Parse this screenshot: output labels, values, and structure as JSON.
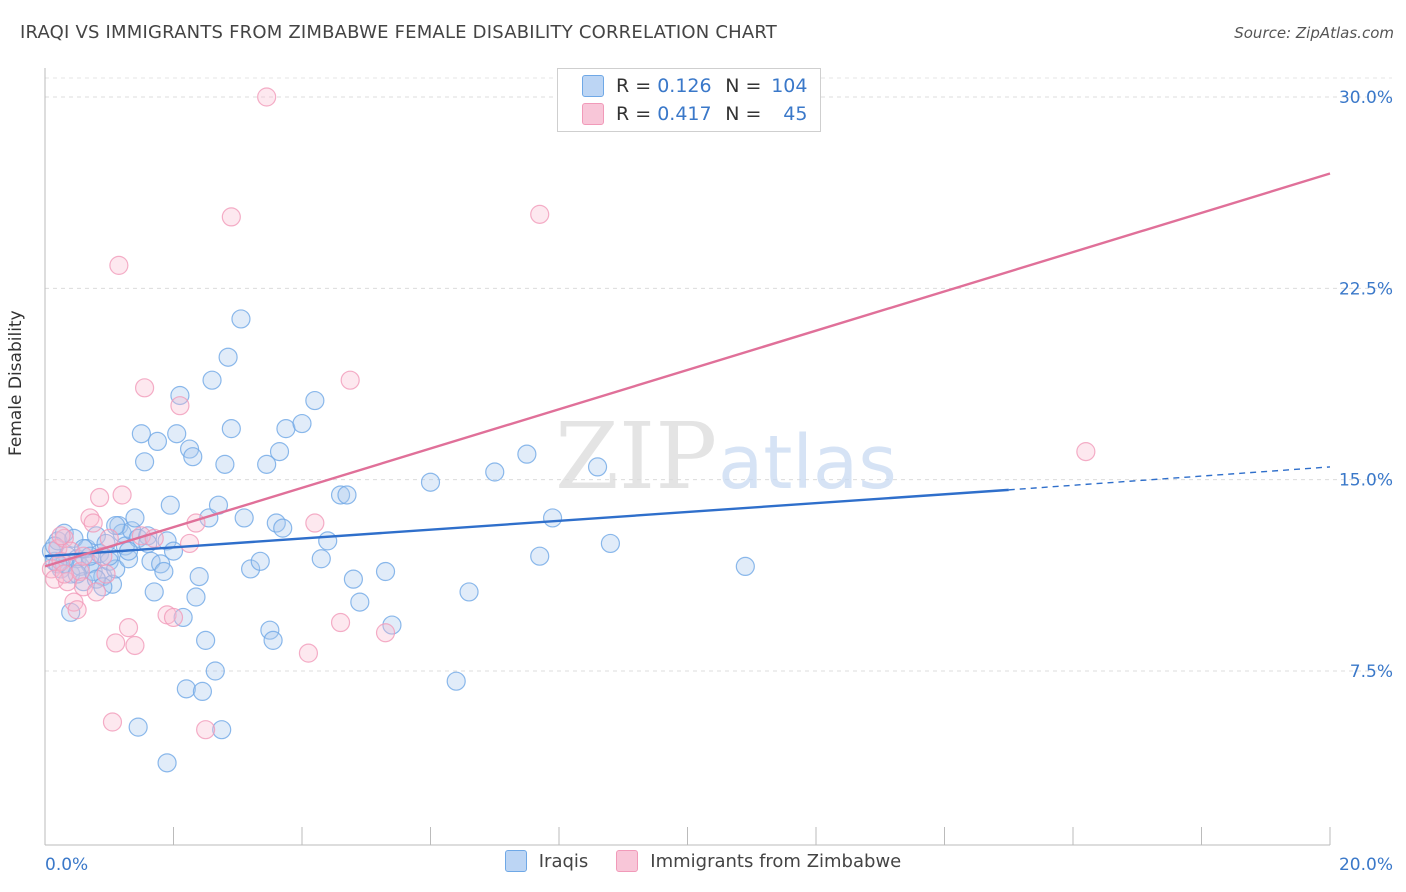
{
  "chart_data": {
    "type": "scatter",
    "title": "IRAQI VS IMMIGRANTS FROM ZIMBABWE FEMALE DISABILITY CORRELATION CHART",
    "source": "Source: ZipAtlas.com",
    "ylabel": "Female Disability",
    "xlim": [
      0,
      20
    ],
    "ylim": [
      0,
      31
    ],
    "x_tick_labels": [
      "0.0%",
      "20.0%"
    ],
    "y_ticks": [
      7.5,
      15.0,
      22.5,
      30.0
    ],
    "y_tick_labels": [
      "7.5%",
      "15.0%",
      "22.5%",
      "30.0%"
    ],
    "watermark": {
      "zip": "ZIP",
      "atlas": "atlas"
    },
    "legend": {
      "iraqis": {
        "r_label": "R =",
        "r_value": "0.126",
        "n_label": "N =",
        "n_value": "104"
      },
      "zimbabwe": {
        "r_label": "R =",
        "r_value": "0.417",
        "n_label": "N =",
        "n_value": "45"
      }
    },
    "series": [
      {
        "name": "Iraqis",
        "color": "#6fa8e6",
        "line_color": "#2f6fcb",
        "trend": {
          "x0": 0,
          "y0": 12.0,
          "x1": 15.0,
          "y1": 14.6,
          "dash_to_x": 20.0,
          "dash_to_y": 15.5
        },
        "points": [
          [
            0.1,
            12.2
          ],
          [
            0.15,
            11.8
          ],
          [
            0.2,
            12.6
          ],
          [
            0.25,
            11.5
          ],
          [
            0.3,
            12.9
          ],
          [
            0.35,
            12.0
          ],
          [
            0.4,
            11.3
          ],
          [
            0.45,
            12.7
          ],
          [
            0.5,
            11.9
          ],
          [
            0.55,
            11.6
          ],
          [
            0.6,
            11.0
          ],
          [
            0.65,
            12.3
          ],
          [
            0.7,
            11.7
          ],
          [
            0.75,
            11.4
          ],
          [
            0.8,
            12.8
          ],
          [
            0.85,
            12.1
          ],
          [
            0.9,
            11.2
          ],
          [
            0.95,
            12.5
          ],
          [
            1.0,
            11.8
          ],
          [
            1.05,
            10.9
          ],
          [
            1.1,
            11.5
          ],
          [
            1.15,
            13.2
          ],
          [
            1.2,
            12.9
          ],
          [
            1.25,
            12.4
          ],
          [
            1.3,
            11.9
          ],
          [
            1.35,
            13.0
          ],
          [
            1.4,
            13.5
          ],
          [
            1.45,
            12.7
          ],
          [
            1.5,
            16.8
          ],
          [
            1.55,
            15.7
          ],
          [
            1.6,
            12.8
          ],
          [
            1.65,
            11.8
          ],
          [
            1.7,
            10.6
          ],
          [
            1.75,
            16.5
          ],
          [
            1.8,
            11.7
          ],
          [
            1.85,
            11.4
          ],
          [
            1.9,
            12.6
          ],
          [
            1.95,
            14.0
          ],
          [
            2.0,
            12.2
          ],
          [
            2.05,
            16.8
          ],
          [
            2.1,
            18.3
          ],
          [
            2.15,
            9.6
          ],
          [
            2.2,
            6.8
          ],
          [
            2.25,
            16.2
          ],
          [
            2.3,
            15.9
          ],
          [
            2.35,
            10.4
          ],
          [
            2.4,
            11.2
          ],
          [
            2.45,
            6.7
          ],
          [
            2.5,
            8.7
          ],
          [
            2.55,
            13.5
          ],
          [
            2.6,
            18.9
          ],
          [
            2.65,
            7.5
          ],
          [
            2.7,
            14.0
          ],
          [
            2.75,
            5.2
          ],
          [
            2.8,
            15.6
          ],
          [
            2.85,
            19.8
          ],
          [
            2.9,
            17.0
          ],
          [
            3.05,
            21.3
          ],
          [
            3.1,
            13.5
          ],
          [
            3.2,
            11.5
          ],
          [
            3.35,
            11.8
          ],
          [
            3.45,
            15.6
          ],
          [
            3.5,
            9.1
          ],
          [
            3.55,
            8.7
          ],
          [
            3.6,
            13.3
          ],
          [
            3.65,
            16.1
          ],
          [
            3.7,
            13.1
          ],
          [
            3.75,
            17.0
          ],
          [
            4.0,
            17.2
          ],
          [
            4.2,
            18.1
          ],
          [
            4.3,
            11.9
          ],
          [
            4.4,
            12.6
          ],
          [
            4.6,
            14.4
          ],
          [
            4.7,
            14.4
          ],
          [
            4.8,
            11.1
          ],
          [
            4.9,
            10.2
          ],
          [
            5.3,
            11.4
          ],
          [
            5.4,
            9.3
          ],
          [
            6.0,
            14.9
          ],
          [
            6.4,
            7.1
          ],
          [
            6.6,
            10.6
          ],
          [
            7.0,
            15.3
          ],
          [
            7.5,
            16.0
          ],
          [
            7.7,
            12.0
          ],
          [
            7.9,
            13.5
          ],
          [
            8.6,
            15.5
          ],
          [
            8.8,
            12.5
          ],
          [
            10.9,
            11.6
          ],
          [
            1.45,
            5.3
          ],
          [
            1.9,
            3.9
          ],
          [
            0.4,
            9.8
          ],
          [
            1.0,
            12.0
          ],
          [
            0.3,
            11.7
          ],
          [
            0.6,
            12.3
          ],
          [
            1.1,
            13.2
          ],
          [
            0.8,
            11.1
          ],
          [
            0.5,
            11.3
          ],
          [
            0.2,
            11.7
          ],
          [
            0.9,
            10.8
          ],
          [
            1.6,
            12.5
          ],
          [
            0.7,
            12.0
          ],
          [
            1.3,
            12.2
          ],
          [
            0.15,
            12.4
          ]
        ]
      },
      {
        "name": "Immigrants from Zimbabwe",
        "color": "#f19ab9",
        "line_color": "#e07099",
        "trend": {
          "x0": 0,
          "y0": 11.6,
          "x1": 20.0,
          "y1": 27.0
        },
        "points": [
          [
            0.1,
            11.5
          ],
          [
            0.15,
            11.1
          ],
          [
            0.2,
            12.3
          ],
          [
            0.25,
            11.8
          ],
          [
            0.3,
            12.7
          ],
          [
            0.35,
            11.0
          ],
          [
            0.4,
            12.2
          ],
          [
            0.45,
            10.2
          ],
          [
            0.5,
            9.9
          ],
          [
            0.55,
            11.4
          ],
          [
            0.6,
            10.8
          ],
          [
            0.7,
            13.5
          ],
          [
            0.75,
            13.3
          ],
          [
            0.8,
            10.6
          ],
          [
            0.85,
            14.3
          ],
          [
            0.9,
            12.0
          ],
          [
            0.95,
            11.3
          ],
          [
            1.0,
            12.7
          ],
          [
            1.05,
            5.5
          ],
          [
            1.1,
            8.6
          ],
          [
            1.15,
            23.4
          ],
          [
            1.2,
            14.4
          ],
          [
            1.3,
            9.2
          ],
          [
            1.4,
            8.5
          ],
          [
            1.5,
            12.8
          ],
          [
            1.55,
            18.6
          ],
          [
            1.7,
            12.7
          ],
          [
            1.9,
            9.7
          ],
          [
            2.0,
            9.6
          ],
          [
            2.1,
            17.9
          ],
          [
            2.25,
            12.5
          ],
          [
            2.35,
            13.3
          ],
          [
            2.5,
            5.2
          ],
          [
            2.9,
            25.3
          ],
          [
            3.45,
            30.0
          ],
          [
            4.1,
            8.2
          ],
          [
            4.2,
            13.3
          ],
          [
            4.6,
            9.4
          ],
          [
            4.75,
            18.9
          ],
          [
            5.3,
            9.0
          ],
          [
            7.7,
            25.4
          ],
          [
            16.2,
            16.1
          ],
          [
            0.3,
            11.3
          ],
          [
            0.6,
            12.0
          ],
          [
            0.25,
            12.8
          ]
        ]
      }
    ]
  }
}
